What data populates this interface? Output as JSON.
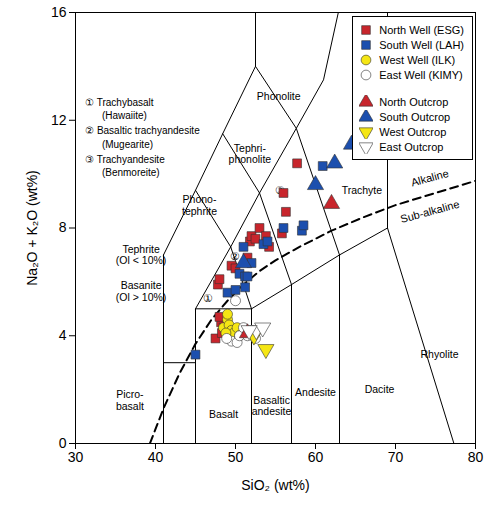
{
  "chart_data": {
    "type": "scatter",
    "xlabel": "SiO₂ (wt%)",
    "ylabel": "Na₂O + K₂O (wt%)",
    "xlim": [
      30,
      80
    ],
    "ylim": [
      0,
      16
    ],
    "xticks": [
      30,
      40,
      50,
      60,
      70,
      80
    ],
    "yticks": [
      0,
      4,
      8,
      12,
      16
    ],
    "grid": false,
    "legend": "top-right",
    "series": [
      {
        "name": "North Well (ESG)",
        "color": "#c8252c",
        "marker": "square",
        "values": [
          [
            47.8,
            5.9
          ],
          [
            48.0,
            6.1
          ],
          [
            47.5,
            3.9
          ],
          [
            48.2,
            4.5
          ],
          [
            48.0,
            4.7
          ],
          [
            48.5,
            4.3
          ],
          [
            49.5,
            6.6
          ],
          [
            50.0,
            6.5
          ],
          [
            51.5,
            6.9
          ],
          [
            51.8,
            7.5
          ],
          [
            52.0,
            7.7
          ],
          [
            52.5,
            7.6
          ],
          [
            53.0,
            8.0
          ],
          [
            53.8,
            7.7
          ],
          [
            54.2,
            7.3
          ],
          [
            55.8,
            7.8
          ],
          [
            56.0,
            9.3
          ],
          [
            56.3,
            8.6
          ],
          [
            57.7,
            10.4
          ],
          [
            48.3,
            4.1
          ],
          [
            49.0,
            4.2
          ]
        ]
      },
      {
        "name": "South Well (LAH)",
        "color": "#1c4fae",
        "marker": "square",
        "values": [
          [
            45.0,
            3.3
          ],
          [
            49.0,
            5.6
          ],
          [
            50.0,
            5.7
          ],
          [
            50.5,
            6.3
          ],
          [
            51.0,
            7.3
          ],
          [
            51.2,
            6.2
          ],
          [
            51.5,
            6.2
          ],
          [
            52.0,
            6.7
          ],
          [
            53.5,
            7.4
          ],
          [
            54.0,
            7.5
          ],
          [
            56.0,
            8.0
          ],
          [
            58.3,
            7.9
          ],
          [
            58.5,
            8.1
          ],
          [
            60.9,
            10.3
          ],
          [
            51.2,
            5.8
          ]
        ]
      },
      {
        "name": "West Well (ILK)",
        "color": "#f5e614",
        "marker": "circle",
        "values": [
          [
            48.5,
            4.3
          ],
          [
            49.0,
            4.6
          ],
          [
            49.2,
            4.4
          ],
          [
            49.5,
            4.2
          ],
          [
            49.8,
            4.1
          ],
          [
            50.2,
            4.3
          ],
          [
            50.5,
            4.0
          ],
          [
            49.0,
            4.8
          ],
          [
            51.0,
            4.1
          ],
          [
            48.8,
            4.1
          ]
        ]
      },
      {
        "name": "East Well (KIMY)",
        "color": "#ffffff",
        "marker": "circle",
        "values": [
          [
            49.5,
            3.8
          ],
          [
            50.2,
            3.75
          ],
          [
            50.5,
            4.0
          ],
          [
            51.0,
            4.3
          ],
          [
            51.5,
            4.0
          ],
          [
            50.0,
            5.3
          ],
          [
            52.0,
            4.2
          ],
          [
            52.5,
            3.9
          ],
          [
            48.9,
            3.9
          ]
        ]
      },
      {
        "name": "North Outcrop",
        "color": "#c8252c",
        "marker": "triangle",
        "values": [
          [
            51.5,
            4.1
          ],
          [
            62.0,
            8.9
          ]
        ]
      },
      {
        "name": "South Outcrop",
        "color": "#1c4fae",
        "marker": "triangle",
        "values": [
          [
            60.0,
            9.6
          ],
          [
            62.4,
            10.4
          ],
          [
            64.5,
            11.1
          ],
          [
            51.0,
            6.7
          ]
        ]
      },
      {
        "name": "West Outcrop",
        "color": "#f5e614",
        "marker": "triangle-down",
        "values": [
          [
            53.8,
            3.5
          ],
          [
            52.3,
            4.0
          ]
        ]
      },
      {
        "name": "East Outcrop",
        "color": "#ffffff",
        "marker": "triangle-down",
        "values": [
          [
            52.6,
            4.2
          ],
          [
            53.4,
            4.3
          ],
          [
            51.7,
            4.2
          ]
        ]
      }
    ],
    "field_boundaries": [
      [
        [
          41,
          0
        ],
        [
          41,
          7
        ]
      ],
      [
        [
          41,
          3
        ],
        [
          45,
          3
        ]
      ],
      [
        [
          45,
          0
        ],
        [
          45,
          5
        ],
        [
          52,
          5
        ],
        [
          52,
          0
        ]
      ],
      [
        [
          52,
          5
        ],
        [
          57,
          5.9
        ],
        [
          63,
          7
        ],
        [
          69,
          8
        ],
        [
          77.3,
          0
        ]
      ],
      [
        [
          57,
          0
        ],
        [
          57,
          5.9
        ]
      ],
      [
        [
          63,
          0
        ],
        [
          63,
          7
        ]
      ],
      [
        [
          45,
          5
        ],
        [
          49.4,
          7.3
        ],
        [
          53,
          9.3
        ],
        [
          57.6,
          11.7
        ],
        [
          61,
          13.5
        ],
        [
          63,
          16.2
        ]
      ],
      [
        [
          52,
          5
        ],
        [
          49.4,
          7.3
        ]
      ],
      [
        [
          57,
          5.9
        ],
        [
          53,
          9.3
        ],
        [
          48.4,
          11.5
        ]
      ],
      [
        [
          63,
          7
        ],
        [
          57.6,
          11.7
        ],
        [
          52.5,
          14
        ],
        [
          52.5,
          18
        ]
      ],
      [
        [
          41,
          7
        ],
        [
          45,
          9.4
        ],
        [
          48.4,
          11.5
        ],
        [
          52.5,
          14
        ]
      ],
      [
        [
          45,
          9.4
        ],
        [
          49.4,
          7.3
        ]
      ],
      [
        [
          69,
          8
        ],
        [
          69,
          17.7
        ]
      ]
    ],
    "divider": {
      "line_style": "dashed",
      "values": [
        [
          39.3,
          0
        ],
        [
          41,
          1.3
        ],
        [
          43,
          2.6
        ],
        [
          45,
          3.7
        ],
        [
          47,
          4.6
        ],
        [
          49,
          5.3
        ],
        [
          51,
          5.9
        ],
        [
          53,
          6.4
        ],
        [
          55,
          6.8
        ],
        [
          58,
          7.3
        ],
        [
          62,
          7.9
        ],
        [
          66,
          8.4
        ],
        [
          70,
          8.85
        ],
        [
          75,
          9.3
        ],
        [
          80,
          9.75
        ]
      ]
    },
    "divider_labels": [
      {
        "text": "Alkaline",
        "x": 74.3,
        "y": 9.85
      },
      {
        "text": "Sub-alkaline",
        "x": 74.3,
        "y": 8.6
      }
    ],
    "field_labels": [
      {
        "text": "Phonolite",
        "x": 55.4,
        "y": 12.9
      },
      {
        "text": "Tephri-\nphonolite",
        "x": 51.8,
        "y": 10.75
      },
      {
        "text": "Phono-\ntephrite",
        "x": 45.5,
        "y": 8.85
      },
      {
        "text": "Trachyte",
        "x": 65.8,
        "y": 9.4
      },
      {
        "text": "③",
        "x": 55.6,
        "y": 9.4
      },
      {
        "text": "②",
        "x": 49.9,
        "y": 6.95
      },
      {
        "text": "①",
        "x": 46.5,
        "y": 5.4
      },
      {
        "text": "Tephrite\n(Ol < 10%)",
        "x": 38.2,
        "y": 7.0
      },
      {
        "text": "Basanite\n(Ol > 10%)",
        "x": 38.2,
        "y": 5.65
      },
      {
        "text": "Picro-\nbasalt",
        "x": 36.8,
        "y": 1.6
      },
      {
        "text": "Basalt",
        "x": 48.5,
        "y": 1.1
      },
      {
        "text": "Basaltic\nandesite",
        "x": 54.5,
        "y": 1.4
      },
      {
        "text": "Andesite",
        "x": 60.0,
        "y": 1.9
      },
      {
        "text": "Dacite",
        "x": 68.0,
        "y": 2.0
      },
      {
        "text": "Rhyolite",
        "x": 75.5,
        "y": 3.3
      }
    ],
    "key_labels": [
      {
        "text": "① Trachybasalt",
        "x": 31.2,
        "y": 12.65
      },
      {
        "text": "(Hawaiite)",
        "x": 33.3,
        "y": 12.15
      },
      {
        "text": "② Basaltic trachyandesite",
        "x": 31.2,
        "y": 11.6
      },
      {
        "text": "(Mugearite)",
        "x": 33.3,
        "y": 11.1
      },
      {
        "text": "③ Trachyandesite",
        "x": 31.2,
        "y": 10.55
      },
      {
        "text": "(Benmoreite)",
        "x": 33.3,
        "y": 10.05
      }
    ]
  }
}
